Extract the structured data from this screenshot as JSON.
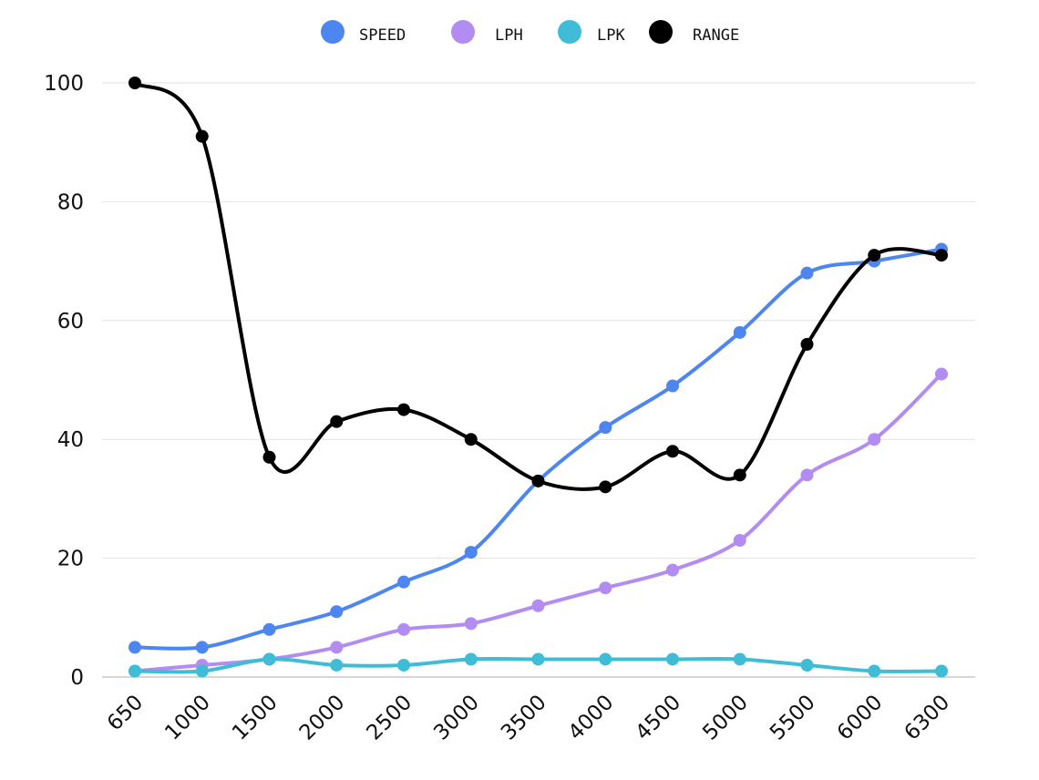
{
  "chart_data": {
    "type": "line",
    "title": "",
    "xlabel": "",
    "ylabel": "",
    "categories": [
      "650",
      "1000",
      "1500",
      "2000",
      "2500",
      "3000",
      "3500",
      "4000",
      "4500",
      "5000",
      "5500",
      "6000",
      "6300"
    ],
    "ylim": [
      0,
      100
    ],
    "yticks": [
      "0",
      "20",
      "40",
      "60",
      "80",
      "100"
    ],
    "grid": true,
    "legend_position": "top-center",
    "series": [
      {
        "name": "SPEED",
        "color": "#4d86f0",
        "values": [
          5,
          5,
          8,
          11,
          16,
          21,
          33,
          42,
          49,
          58,
          68,
          70,
          72
        ]
      },
      {
        "name": "LPH",
        "color": "#b28cf0",
        "values": [
          1,
          2,
          3,
          5,
          8,
          9,
          12,
          15,
          18,
          23,
          34,
          40,
          51
        ]
      },
      {
        "name": "LPK",
        "color": "#3fbdd6",
        "values": [
          1,
          1,
          3,
          2,
          2,
          3,
          3,
          3,
          3,
          3,
          2,
          1,
          1
        ]
      },
      {
        "name": "RANGE",
        "color": "#000000",
        "values": [
          100,
          91,
          37,
          43,
          45,
          40,
          33,
          32,
          38,
          34,
          56,
          71,
          71
        ]
      }
    ]
  }
}
